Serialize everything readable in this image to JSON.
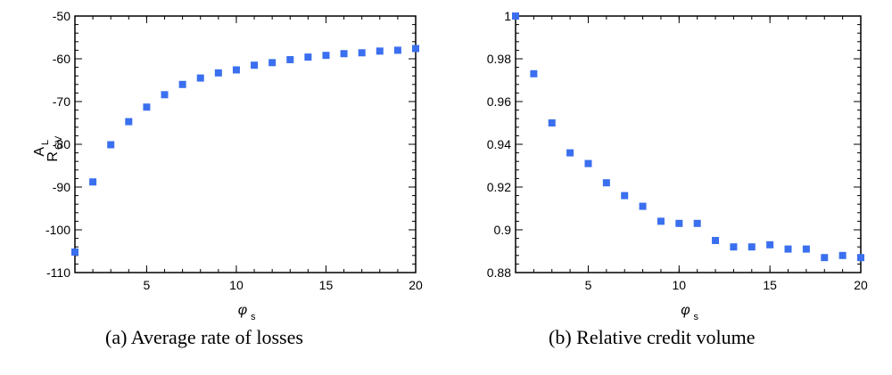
{
  "chart_data": [
    {
      "type": "scatter",
      "title": "",
      "xlabel": "φ",
      "xlabel_sub": "s",
      "ylabel": "A",
      "ylabel_sub": "L",
      "xlim": [
        1,
        20
      ],
      "ylim": [
        -110,
        -50
      ],
      "xticks": [
        5,
        10,
        15,
        20
      ],
      "yticks": [
        -110,
        -100,
        -90,
        -80,
        -70,
        -60,
        -50
      ],
      "ytick_labels": [
        "-110",
        "-100",
        "-90",
        "-80",
        "-70",
        "-60",
        "-50"
      ],
      "marker_color": "#3a6fef",
      "x": [
        1,
        2,
        3,
        4,
        5,
        6,
        7,
        8,
        9,
        10,
        11,
        12,
        13,
        14,
        15,
        16,
        17,
        18,
        19,
        20
      ],
      "y": [
        -105.2,
        -88.8,
        -80.1,
        -74.7,
        -71.3,
        -68.4,
        -66.0,
        -64.5,
        -63.3,
        -62.6,
        -61.5,
        -60.9,
        -60.2,
        -59.6,
        -59.2,
        -58.8,
        -58.6,
        -58.2,
        -58.0,
        -57.6
      ],
      "caption": "(a) Average rate of losses"
    },
    {
      "type": "scatter",
      "title": "",
      "xlabel": "φ",
      "xlabel_sub": "s",
      "ylabel": "R",
      "ylabel_sub": "CV",
      "xlim": [
        1,
        20
      ],
      "ylim": [
        0.88,
        1.0
      ],
      "xticks": [
        5,
        10,
        15,
        20
      ],
      "yticks": [
        0.88,
        0.9,
        0.92,
        0.94,
        0.96,
        0.98,
        1.0
      ],
      "ytick_labels": [
        "0.88",
        "0.9",
        "0.92",
        "0.94",
        "0.96",
        "0.98",
        "1"
      ],
      "marker_color": "#3a6fef",
      "x": [
        1,
        2,
        3,
        4,
        5,
        6,
        7,
        8,
        9,
        10,
        11,
        12,
        13,
        14,
        15,
        16,
        17,
        18,
        19,
        20
      ],
      "y": [
        1.0,
        0.973,
        0.95,
        0.936,
        0.931,
        0.922,
        0.916,
        0.911,
        0.904,
        0.903,
        0.903,
        0.895,
        0.892,
        0.892,
        0.893,
        0.891,
        0.891,
        0.887,
        0.888,
        0.887
      ],
      "caption": "(b) Relative credit volume"
    }
  ]
}
